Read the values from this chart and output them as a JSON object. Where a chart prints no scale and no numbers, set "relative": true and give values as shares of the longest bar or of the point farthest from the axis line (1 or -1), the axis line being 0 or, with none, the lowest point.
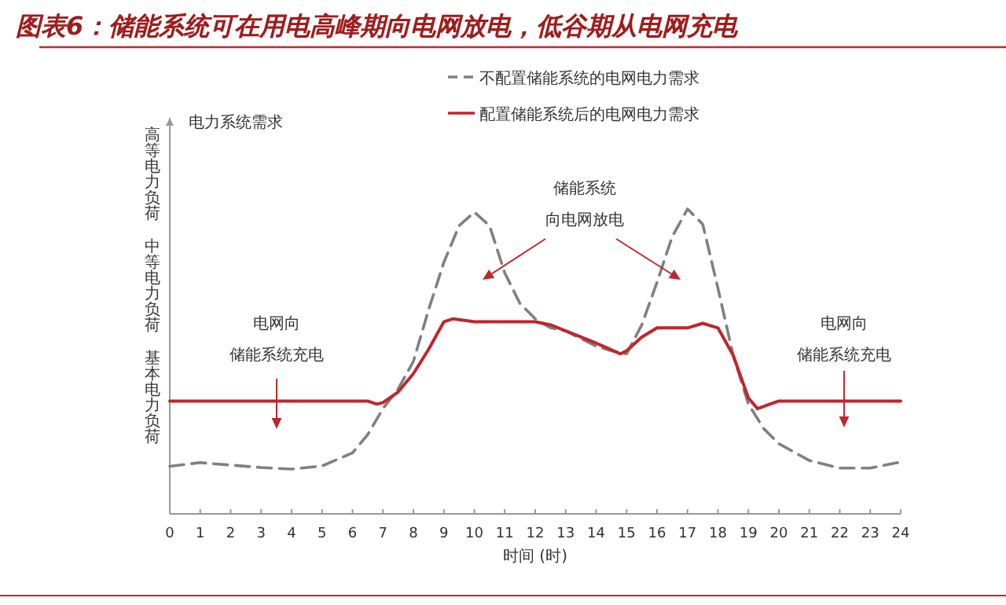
{
  "chart_data": {
    "type": "line",
    "title": "图表6：储能系统可在用电高峰期向电网放电，低谷期从电网充电",
    "xlabel": "时间 (时)",
    "ylabel": "电力系统需求",
    "xlim": [
      0,
      24
    ],
    "xticks": [
      0,
      1,
      2,
      3,
      4,
      5,
      6,
      7,
      8,
      9,
      10,
      11,
      12,
      13,
      14,
      15,
      16,
      17,
      18,
      19,
      20,
      21,
      22,
      23,
      24
    ],
    "relative": true,
    "legend": "top",
    "series": [
      {
        "name": "不配置储能系统的电网电力需求",
        "color": "#808080",
        "line_style": "dashed",
        "x": [
          0,
          1,
          2,
          3,
          4,
          5,
          6,
          6.5,
          7,
          7.5,
          8,
          8.5,
          9,
          9.5,
          10,
          10.5,
          11,
          11.5,
          12,
          12.5,
          13,
          14,
          14.5,
          15,
          15.5,
          16,
          16.5,
          17,
          17.5,
          18,
          18.5,
          19,
          19.5,
          20,
          21,
          22,
          23,
          24
        ],
        "values": [
          0.156,
          0.168,
          0.16,
          0.152,
          0.147,
          0.157,
          0.2,
          0.26,
          0.345,
          0.41,
          0.5,
          0.67,
          0.825,
          0.945,
          0.99,
          0.945,
          0.79,
          0.69,
          0.64,
          0.61,
          0.6,
          0.55,
          0.535,
          0.525,
          0.62,
          0.76,
          0.91,
          1.0,
          0.95,
          0.74,
          0.52,
          0.36,
          0.28,
          0.23,
          0.175,
          0.15,
          0.15,
          0.17
        ]
      },
      {
        "name": "配置储能系统后的电网电力需求",
        "color": "#c0262d",
        "line_style": "solid",
        "x": [
          0,
          1,
          2,
          3,
          4,
          5,
          6,
          6.5,
          6.8,
          7,
          7.5,
          8,
          8.5,
          9,
          9.3,
          10,
          11,
          12,
          12.5,
          13,
          14,
          14.8,
          15,
          15.5,
          16,
          17,
          17.5,
          18,
          18.5,
          19,
          19.3,
          19.7,
          20,
          21,
          22,
          23,
          24
        ],
        "values": [
          0.37,
          0.37,
          0.37,
          0.37,
          0.37,
          0.37,
          0.37,
          0.37,
          0.36,
          0.365,
          0.4,
          0.46,
          0.54,
          0.63,
          0.64,
          0.63,
          0.63,
          0.63,
          0.62,
          0.6,
          0.56,
          0.525,
          0.535,
          0.58,
          0.61,
          0.61,
          0.625,
          0.61,
          0.52,
          0.38,
          0.345,
          0.36,
          0.37,
          0.37,
          0.37,
          0.37,
          0.37
        ]
      }
    ],
    "annotations": [
      "高等电力负荷",
      "中等电力负荷",
      "基本电力负荷",
      "储能系统",
      "向电网放电",
      "电网向",
      "储能系统充电",
      "电网向",
      "储能系统充电"
    ]
  }
}
